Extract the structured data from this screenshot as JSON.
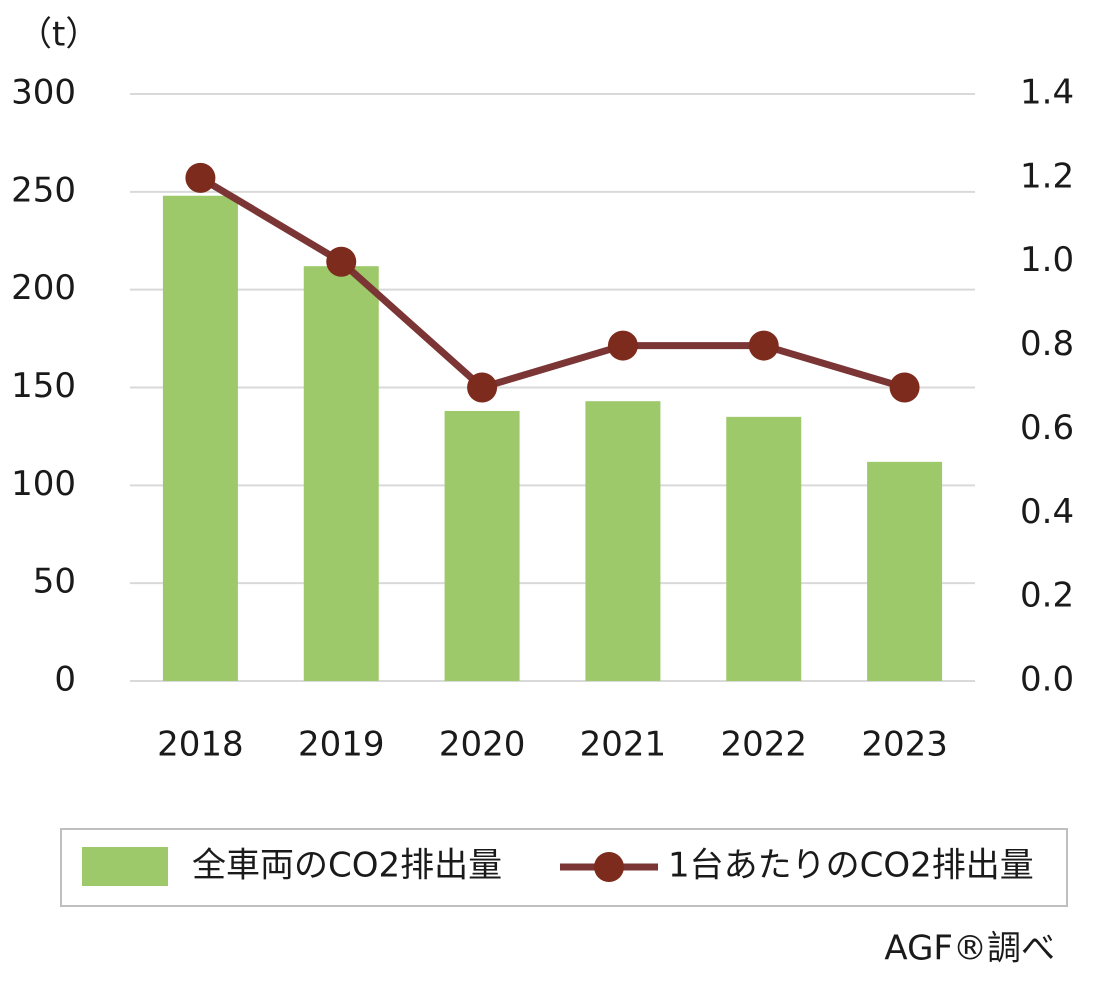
{
  "chart_data": {
    "type": "bar",
    "y_unit_label": "（t）",
    "source": "AGF®調べ",
    "categories": [
      "2018",
      "2019",
      "2020",
      "2021",
      "2022",
      "2023"
    ],
    "series": [
      {
        "name": "全車両のCO2排出量",
        "type": "bar",
        "color": "#9dc96a",
        "values": [
          248,
          212,
          138,
          143,
          135,
          112
        ]
      },
      {
        "name": "1台あたりのCO2排出量",
        "type": "line",
        "axis": "y2",
        "color": "#7b3535",
        "marker_color": "#7d2b1c",
        "values": [
          1.2,
          1.0,
          0.7,
          0.8,
          0.8,
          0.7
        ]
      }
    ],
    "ylim": [
      0,
      300
    ],
    "yticks": [
      0,
      50,
      100,
      150,
      200,
      250,
      300
    ],
    "y2lim": [
      0,
      1.4
    ],
    "y2ticks": [
      {
        "value": 0,
        "label": "0.0"
      },
      0.2,
      0.4,
      0.6,
      0.8,
      {
        "value": 1,
        "label": "1.0"
      },
      1.2,
      1.4
    ],
    "grid": true,
    "legend": "bottom"
  }
}
